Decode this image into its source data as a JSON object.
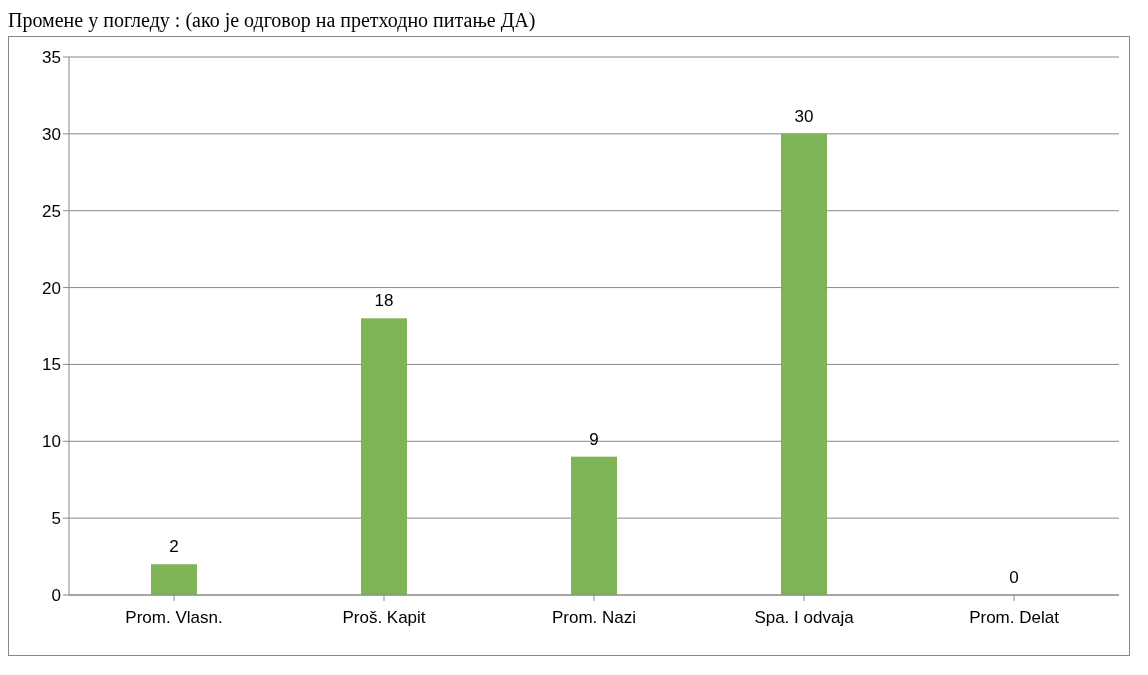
{
  "chart_data": {
    "type": "bar",
    "title": "Промене у погледу : (ако је одговор на претходно питање ДА)",
    "categories": [
      "Prom. Vlasn.",
      "Proš. Kapit",
      "Prom. Nazi",
      "Spa. I odvaja",
      "Prom. Delat"
    ],
    "values": [
      2,
      18,
      9,
      30,
      0
    ],
    "color": "#7eb356",
    "ylim": [
      0,
      35
    ],
    "yticks": [
      0,
      5,
      10,
      15,
      20,
      25,
      30,
      35
    ],
    "grid": "y",
    "data_labels": true
  }
}
